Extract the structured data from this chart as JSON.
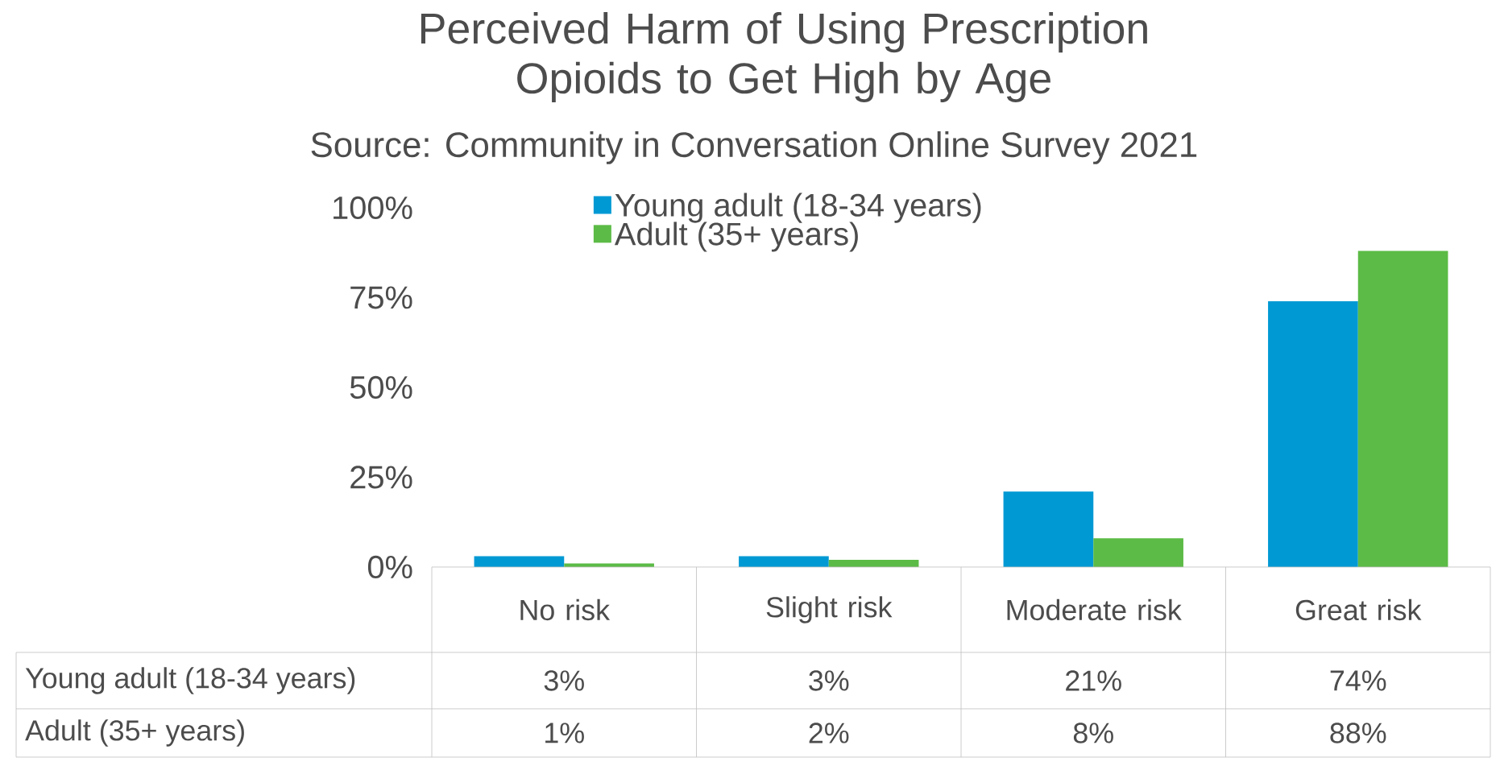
{
  "chart_data": {
    "type": "bar",
    "title": "Perceived Harm of Using Prescription Opioids to Get High by Age",
    "subtitle": "Source: Community in Conversation Online Survey 2021",
    "categories": [
      "No risk",
      "Slight risk",
      "Moderate risk",
      "Great risk"
    ],
    "series": [
      {
        "name": "Young adult (18-34 years)",
        "color": "#0099d4",
        "values": [
          3,
          3,
          21,
          74
        ],
        "value_labels": [
          "3%",
          "3%",
          "21%",
          "74%"
        ]
      },
      {
        "name": "Adult (35+ years)",
        "color": "#5cbb46",
        "values": [
          1,
          2,
          8,
          88
        ],
        "value_labels": [
          "1%",
          "2%",
          "8%",
          "88%"
        ]
      }
    ],
    "ylim": [
      0,
      100
    ],
    "yticks": [
      {
        "value": 0,
        "label": "0%"
      },
      {
        "value": 25,
        "label": "25%"
      },
      {
        "value": 50,
        "label": "50%"
      },
      {
        "value": 75,
        "label": "75%"
      },
      {
        "value": 100,
        "label": "100%"
      }
    ],
    "legend": "top",
    "grid": false
  }
}
